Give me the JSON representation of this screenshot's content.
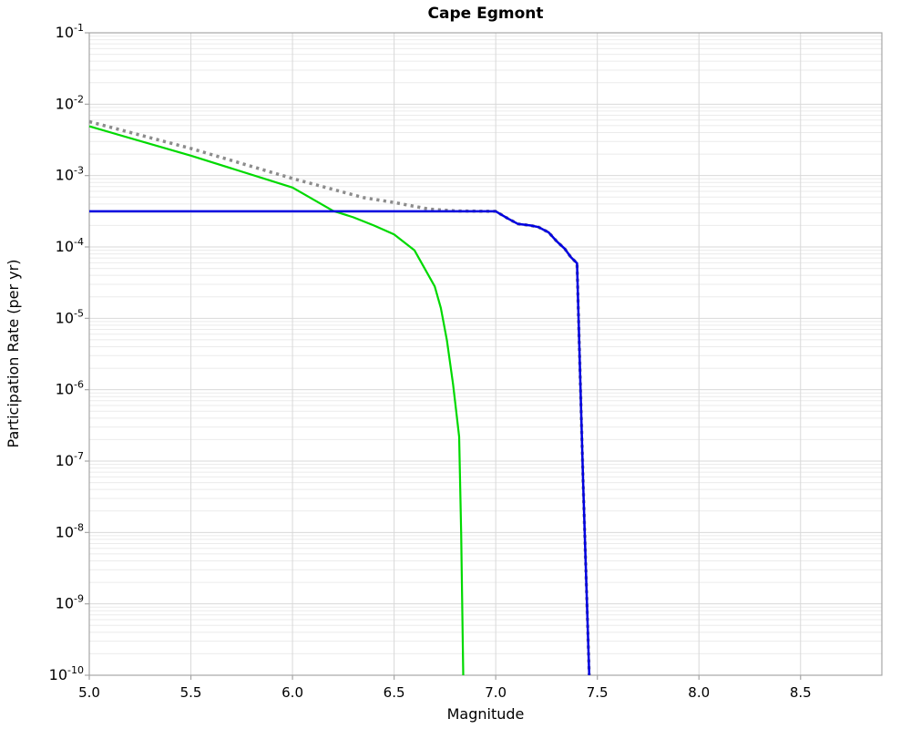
{
  "title": "Cape Egmont",
  "chart_data": {
    "type": "line",
    "title": "Cape Egmont",
    "xlabel": "Magnitude",
    "ylabel": "Participation Rate (per yr)",
    "xlim": [
      5.0,
      8.9
    ],
    "ylim": [
      1e-10,
      0.1
    ],
    "x_ticks": [
      5.0,
      5.5,
      6.0,
      6.5,
      7.0,
      7.5,
      8.0,
      8.5
    ],
    "y_tick_exponents": [
      -1,
      -2,
      -3,
      -4,
      -5,
      -6,
      -7,
      -8,
      -9,
      -10
    ],
    "grid": "major and log-minor on, light gray",
    "legend_position": "none",
    "colors": {
      "green_line": "#00d900",
      "blue_line": "#0000e0",
      "gray_dotted_line": "#8c8c8c",
      "major_grid": "#d9d9d9",
      "minor_grid": "#ebebeb",
      "spine": "#a6a6a6",
      "background": "#ffffff"
    },
    "series": [
      {
        "name": "green-solid",
        "color": "#00d900",
        "style": "solid",
        "width": 2.2,
        "points": [
          [
            5.0,
            0.0049
          ],
          [
            5.5,
            0.0019
          ],
          [
            6.0,
            0.00068
          ],
          [
            6.2,
            0.00032
          ],
          [
            6.3,
            0.00026
          ],
          [
            6.4,
            0.0002
          ],
          [
            6.5,
            0.00015
          ],
          [
            6.6,
            9e-05
          ],
          [
            6.7,
            2.8e-05
          ],
          [
            6.73,
            1.4e-05
          ],
          [
            6.76,
            4.9e-06
          ],
          [
            6.79,
            1.2e-06
          ],
          [
            6.8,
            6.9e-07
          ],
          [
            6.82,
            2.2e-07
          ],
          [
            6.83,
            1e-08
          ],
          [
            6.84,
            1e-10
          ]
        ]
      },
      {
        "name": "gray-dotted",
        "color": "#8c8c8c",
        "style": "dotted",
        "width": 3.5,
        "points": [
          [
            5.0,
            0.0057
          ],
          [
            5.5,
            0.0024
          ],
          [
            6.0,
            0.00091
          ],
          [
            6.35,
            0.00049
          ],
          [
            6.5,
            0.00042
          ],
          [
            6.67,
            0.00034
          ],
          [
            6.8,
            0.00032
          ],
          [
            7.0,
            0.000316
          ],
          [
            7.06,
            0.00025
          ],
          [
            7.11,
            0.00021
          ],
          [
            7.17,
            0.0002
          ],
          [
            7.21,
            0.00019
          ],
          [
            7.26,
            0.00016
          ],
          [
            7.3,
            0.00012
          ],
          [
            7.34,
            9.4e-05
          ],
          [
            7.37,
            7.2e-05
          ],
          [
            7.4,
            5.9e-05
          ],
          [
            7.43,
            5e-08
          ],
          [
            7.46,
            1e-10
          ]
        ]
      },
      {
        "name": "blue-solid",
        "color": "#0000e0",
        "style": "solid",
        "width": 2.5,
        "points": [
          [
            5.0,
            0.000316
          ],
          [
            7.0,
            0.000316
          ],
          [
            7.06,
            0.00025
          ],
          [
            7.11,
            0.00021
          ],
          [
            7.17,
            0.0002
          ],
          [
            7.21,
            0.00019
          ],
          [
            7.26,
            0.00016
          ],
          [
            7.3,
            0.00012
          ],
          [
            7.34,
            9.4e-05
          ],
          [
            7.37,
            7.2e-05
          ],
          [
            7.4,
            5.9e-05
          ],
          [
            7.43,
            5e-08
          ],
          [
            7.46,
            1e-10
          ]
        ]
      }
    ]
  }
}
